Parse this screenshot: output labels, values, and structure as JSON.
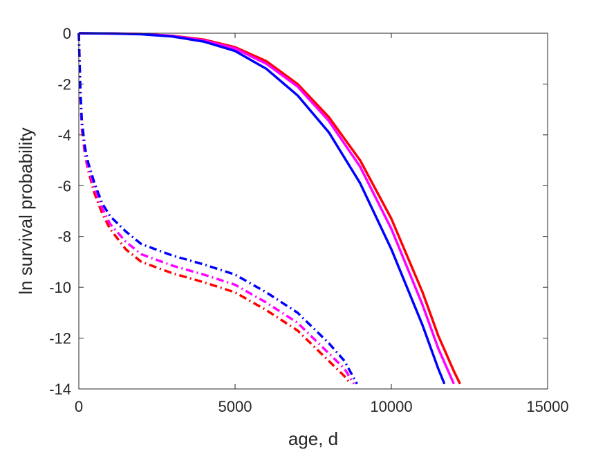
{
  "chart_data": {
    "type": "line",
    "title": "",
    "xlabel": "age, d",
    "ylabel": "ln survival probability",
    "xlim": [
      0,
      15000
    ],
    "ylim": [
      -14,
      0
    ],
    "xticks": [
      0,
      5000,
      10000,
      15000
    ],
    "yticks": [
      0,
      -2,
      -4,
      -6,
      -8,
      -10,
      -12,
      -14
    ],
    "xtick_labels": [
      "0",
      "5000",
      "10000",
      "15000"
    ],
    "ytick_labels": [
      "0",
      "-2",
      "-4",
      "-6",
      "-8",
      "-10",
      "-12",
      "-14"
    ],
    "grid": false,
    "legend": "none",
    "series": [
      {
        "color": "#ff0000",
        "style": "solid",
        "x": [
          0,
          1000,
          2000,
          3000,
          4000,
          5000,
          6000,
          7000,
          8000,
          9000,
          10000,
          11000,
          11500,
          12000,
          12200
        ],
        "y": [
          0,
          -0.01,
          -0.03,
          -0.1,
          -0.25,
          -0.55,
          -1.1,
          -2.0,
          -3.3,
          -5.0,
          -7.3,
          -10.2,
          -11.9,
          -13.3,
          -13.8
        ]
      },
      {
        "color": "#ff00ff",
        "style": "solid",
        "x": [
          0,
          1000,
          2000,
          3000,
          4000,
          5000,
          6000,
          7000,
          8000,
          9000,
          10000,
          11000,
          11500,
          12000
        ],
        "y": [
          0,
          -0.01,
          -0.03,
          -0.11,
          -0.28,
          -0.6,
          -1.2,
          -2.1,
          -3.45,
          -5.25,
          -7.7,
          -10.7,
          -12.4,
          -13.8
        ]
      },
      {
        "color": "#0000ff",
        "style": "solid",
        "x": [
          0,
          1000,
          2000,
          3000,
          4000,
          5000,
          6000,
          7000,
          8000,
          9000,
          10000,
          11000,
          11500,
          11700
        ],
        "y": [
          0,
          -0.01,
          -0.04,
          -0.13,
          -0.33,
          -0.7,
          -1.4,
          -2.45,
          -3.9,
          -5.9,
          -8.5,
          -11.5,
          -13.2,
          -13.8
        ]
      },
      {
        "color": "#ff0000",
        "style": "dashdot",
        "x": [
          0,
          50,
          100,
          200,
          300,
          500,
          750,
          1000,
          1500,
          2000,
          3000,
          4000,
          5000,
          6000,
          7000,
          7500,
          8000,
          8500,
          8700
        ],
        "y": [
          0,
          -2.5,
          -3.8,
          -4.8,
          -5.4,
          -6.3,
          -7.1,
          -7.7,
          -8.5,
          -9.0,
          -9.45,
          -9.8,
          -10.2,
          -10.9,
          -11.7,
          -12.3,
          -12.9,
          -13.5,
          -13.8
        ]
      },
      {
        "color": "#ff00ff",
        "style": "dashdot",
        "x": [
          0,
          50,
          100,
          200,
          300,
          500,
          750,
          1000,
          1500,
          2000,
          3000,
          4000,
          5000,
          6000,
          7000,
          7500,
          8000,
          8500,
          8800
        ],
        "y": [
          0,
          -2.4,
          -3.7,
          -4.7,
          -5.3,
          -6.1,
          -6.9,
          -7.5,
          -8.2,
          -8.7,
          -9.15,
          -9.5,
          -9.9,
          -10.6,
          -11.4,
          -12.0,
          -12.6,
          -13.2,
          -13.8
        ]
      },
      {
        "color": "#0000ff",
        "style": "dashdot",
        "x": [
          0,
          50,
          100,
          200,
          300,
          500,
          750,
          1000,
          1500,
          2000,
          3000,
          4000,
          5000,
          6000,
          7000,
          7500,
          8000,
          8500,
          8900
        ],
        "y": [
          0,
          -2.3,
          -3.5,
          -4.5,
          -5.1,
          -5.9,
          -6.7,
          -7.2,
          -7.8,
          -8.3,
          -8.75,
          -9.1,
          -9.5,
          -10.2,
          -11.0,
          -11.6,
          -12.2,
          -12.9,
          -13.8
        ]
      }
    ]
  }
}
